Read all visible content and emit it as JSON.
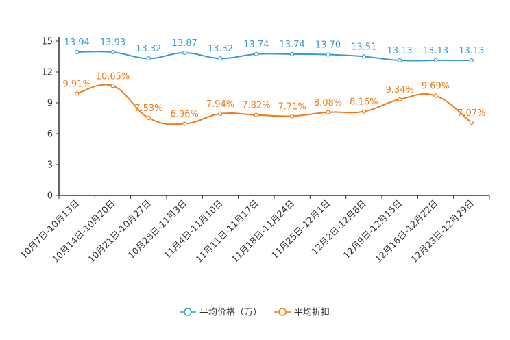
{
  "chart_data": {
    "type": "line",
    "title": "",
    "xlabel": "",
    "ylabel": "",
    "ylim": [
      0,
      15
    ],
    "yticks": [
      0,
      3,
      6,
      9,
      12,
      15
    ],
    "grid": false,
    "legend_position": "bottom-center",
    "categories": [
      "10月7日-10月13日",
      "10月14日-10月20日",
      "10月21日-10月27日",
      "10月28日-11月3日",
      "11月4日-11月10日",
      "11月11日-11月17日",
      "11月18日-11月24日",
      "11月25日-12月1日",
      "12月2日-12月8日",
      "12月9日-12月15日",
      "12月16日-12月22日",
      "12月23日-12月29日"
    ],
    "series": [
      {
        "name": "平均价格（万）",
        "color": "#3a9bd0",
        "values": [
          13.94,
          13.93,
          13.32,
          13.87,
          13.32,
          13.74,
          13.74,
          13.7,
          13.51,
          13.13,
          13.13,
          13.13
        ],
        "labels": [
          "13.94",
          "13.93",
          "13.32",
          "13.87",
          "13.32",
          "13.74",
          "13.74",
          "13.70",
          "13.51",
          "13.13",
          "13.13",
          "13.13"
        ]
      },
      {
        "name": "平均折扣",
        "color": "#f07a1a",
        "values": [
          9.91,
          10.65,
          7.53,
          6.96,
          7.94,
          7.82,
          7.71,
          8.08,
          8.16,
          9.34,
          9.69,
          7.07
        ],
        "labels": [
          "9.91%",
          "10.65%",
          "7.53%",
          "6.96%",
          "7.94%",
          "7.82%",
          "7.71%",
          "8.08%",
          "8.16%",
          "9.34%",
          "9.69%",
          "7.07%"
        ]
      }
    ]
  }
}
